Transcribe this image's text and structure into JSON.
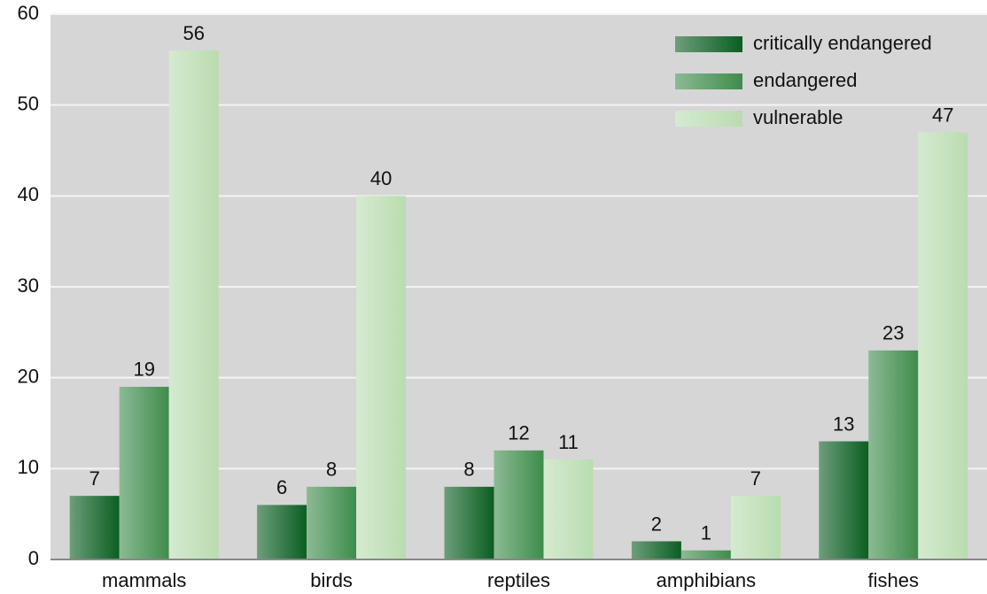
{
  "chart_data": {
    "type": "bar",
    "categories": [
      "mammals",
      "birds",
      "reptiles",
      "amphibians",
      "fishes"
    ],
    "series": [
      {
        "name": "critically endangered",
        "color": "#0b5e22",
        "values": [
          7,
          6,
          8,
          2,
          13
        ]
      },
      {
        "name": "endangered",
        "color": "#3f8c4c",
        "values": [
          19,
          8,
          12,
          1,
          23
        ]
      },
      {
        "name": "vulnerable",
        "color": "#b9dcb0",
        "values": [
          56,
          40,
          11,
          7,
          47
        ]
      }
    ],
    "ylim": [
      0,
      60
    ],
    "yticks": [
      0,
      10,
      20,
      30,
      40,
      50,
      60
    ],
    "grid": true,
    "legend": "upper right"
  }
}
